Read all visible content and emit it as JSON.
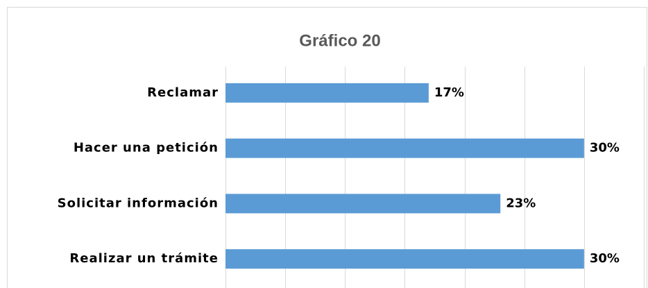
{
  "chart_data": {
    "type": "hbar",
    "title": "Gráfico 20",
    "categories": [
      "Reclamar",
      "Hacer una petición",
      "Solicitar información",
      "Realizar un trámite"
    ],
    "values": [
      17,
      30,
      23,
      30
    ],
    "value_labels": [
      "17%",
      "30%",
      "23%",
      "30%"
    ],
    "color": "#5b9bd5",
    "xlim": [
      0,
      35
    ],
    "xticks": [
      0,
      5,
      10,
      15,
      20,
      25,
      30,
      35
    ],
    "grid": true
  }
}
